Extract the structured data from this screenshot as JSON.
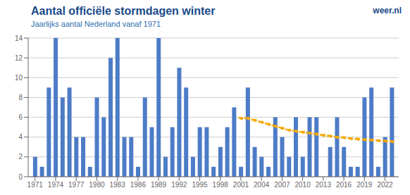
{
  "chart_data": {
    "type": "bar",
    "title": "Aantal officiële stormdagen winter",
    "subtitle": "Jaarlijks aantal Nederland vanaf 1971",
    "annotations": [
      "weer.nl"
    ],
    "x": [
      1971,
      1972,
      1973,
      1974,
      1975,
      1976,
      1977,
      1978,
      1979,
      1980,
      1981,
      1982,
      1983,
      1984,
      1985,
      1986,
      1987,
      1988,
      1989,
      1990,
      1991,
      1992,
      1993,
      1994,
      1995,
      1996,
      1997,
      1998,
      1999,
      2000,
      2001,
      2002,
      2003,
      2004,
      2005,
      2006,
      2007,
      2008,
      2009,
      2010,
      2011,
      2012,
      2013,
      2014,
      2015,
      2016,
      2017,
      2018,
      2019,
      2020,
      2021,
      2022,
      2023
    ],
    "series": [
      {
        "type": "bar",
        "color": "#4d7cc7",
        "values": [
          2,
          1,
          9,
          14,
          8,
          9,
          4,
          4,
          1,
          8,
          6,
          12,
          14,
          4,
          4,
          1,
          8,
          5,
          14,
          2,
          5,
          11,
          9,
          2,
          5,
          5,
          1,
          3,
          5,
          7,
          1,
          9,
          3,
          2,
          1,
          6,
          4,
          2,
          6,
          2,
          6,
          6,
          0,
          3,
          6,
          3,
          1,
          1,
          8,
          9,
          1,
          4,
          9
        ]
      },
      {
        "type": "line",
        "color": "#f5a800",
        "line_style": "dotted",
        "marker": "circle",
        "x": [
          2001,
          2002,
          2003,
          2004,
          2005,
          2006,
          2007,
          2008,
          2009,
          2010,
          2011,
          2012,
          2013,
          2014,
          2015,
          2016,
          2017,
          2018,
          2019,
          2020,
          2021,
          2022,
          2023
        ],
        "values": [
          5.9,
          5.9,
          5.7,
          5.5,
          5.3,
          5.1,
          4.9,
          4.7,
          4.6,
          4.5,
          4.4,
          4.3,
          4.2,
          4.1,
          4.0,
          3.95,
          3.85,
          3.8,
          3.75,
          3.7,
          3.65,
          3.6,
          3.55
        ]
      }
    ],
    "xlim": [
      1970,
      2024
    ],
    "xticks": [
      1971,
      1974,
      1977,
      1980,
      1983,
      1986,
      1989,
      1992,
      1995,
      1998,
      2001,
      2004,
      2007,
      2010,
      2013,
      2016,
      2019,
      2022
    ],
    "ylim": [
      0,
      14
    ],
    "yticks": [
      0,
      2,
      4,
      6,
      8,
      10,
      12,
      14
    ],
    "grid": true
  }
}
